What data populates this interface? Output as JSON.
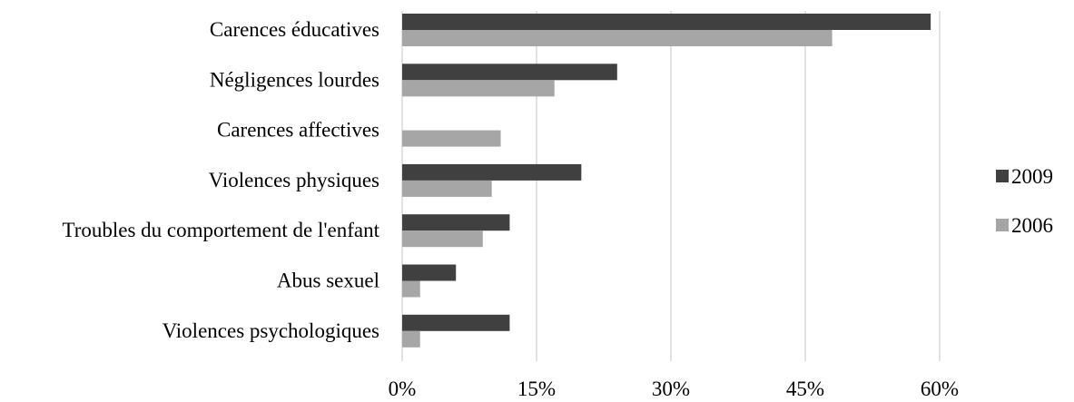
{
  "chart_data": {
    "type": "bar",
    "orientation": "horizontal",
    "categories": [
      "Carences éducatives",
      "Négligences lourdes",
      "Carences affectives",
      "Violences physiques",
      "Troubles du comportement de l'enfant",
      "Abus sexuel",
      "Violences psychologiques"
    ],
    "series": [
      {
        "name": "2009",
        "color": "#404040",
        "values": [
          59,
          24,
          0,
          20,
          12,
          6,
          12
        ]
      },
      {
        "name": "2006",
        "color": "#a6a6a6",
        "values": [
          48,
          17,
          11,
          10,
          9,
          2,
          2
        ]
      }
    ],
    "xlim": [
      0,
      60
    ],
    "xticks": [
      0,
      15,
      30,
      45,
      60
    ],
    "xtick_labels": [
      "0%",
      "15%",
      "30%",
      "45%",
      "60%"
    ],
    "grid": true,
    "legend_position": "right"
  }
}
